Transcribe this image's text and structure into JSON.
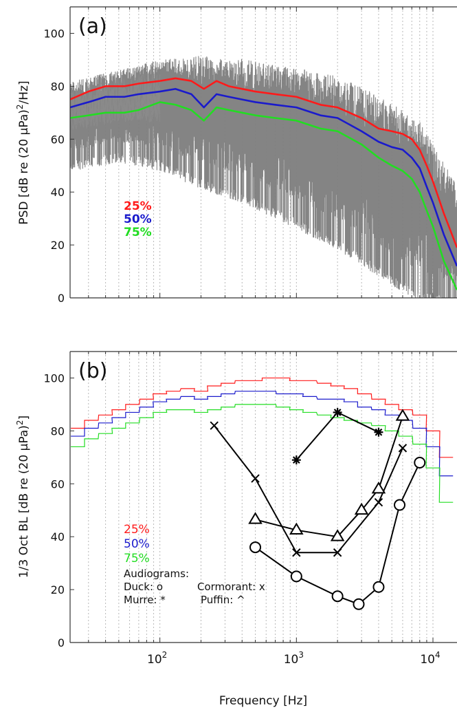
{
  "chart_data": [
    {
      "panel": "(a)",
      "type": "line",
      "title": "",
      "xlabel": "",
      "ylabel": "PSD [dB re (20 µPa)",
      "ylabel_sup": "2",
      "ylabel_tail": "/Hz]",
      "xscale": "log",
      "xlim": [
        22,
        15000
      ],
      "ylim": [
        0,
        110
      ],
      "yticks": [
        0,
        20,
        40,
        60,
        80,
        100
      ],
      "grid": "vertical dotted",
      "legend": [
        "25%",
        "50%",
        "75%"
      ],
      "legend_placement": "center-left",
      "colors": {
        "p25": "#ff1a1a",
        "p50": "#1a1acc",
        "p75": "#22dd22",
        "raw": "#808080"
      },
      "raw_spectra": {
        "name": "",
        "description_ranges": [
          {
            "x": 25,
            "lo": 52,
            "hi": 84
          },
          {
            "x": 50,
            "lo": 55,
            "hi": 88
          },
          {
            "x": 100,
            "lo": 52,
            "hi": 92
          },
          {
            "x": 200,
            "lo": 45,
            "hi": 94
          },
          {
            "x": 400,
            "lo": 40,
            "hi": 93
          },
          {
            "x": 1000,
            "lo": 30,
            "hi": 90
          },
          {
            "x": 2000,
            "lo": 22,
            "hi": 87
          },
          {
            "x": 4000,
            "lo": 12,
            "hi": 80
          },
          {
            "x": 8000,
            "lo": 2,
            "hi": 70
          },
          {
            "x": 15000,
            "lo": 0,
            "hi": 45
          }
        ]
      },
      "series": [
        {
          "name": "25%",
          "x": [
            22,
            30,
            40,
            55,
            70,
            100,
            130,
            170,
            210,
            260,
            320,
            400,
            500,
            700,
            1000,
            1500,
            2000,
            3000,
            4000,
            5000,
            6000,
            7000,
            8000,
            9000,
            10000,
            12000,
            15000
          ],
          "values": [
            75,
            78,
            80,
            80,
            81,
            82,
            83,
            82,
            79,
            82,
            80,
            79,
            78,
            77,
            76,
            73,
            72,
            68,
            64,
            63,
            62,
            60,
            56,
            50,
            44,
            32,
            19
          ]
        },
        {
          "name": "50%",
          "x": [
            22,
            30,
            40,
            55,
            70,
            100,
            130,
            170,
            210,
            260,
            320,
            400,
            500,
            700,
            1000,
            1500,
            2000,
            3000,
            4000,
            5000,
            6000,
            7000,
            8000,
            9000,
            10000,
            12000,
            15000
          ],
          "values": [
            72,
            74,
            76,
            76,
            77,
            78,
            79,
            77,
            72,
            77,
            76,
            75,
            74,
            73,
            72,
            69,
            68,
            63,
            59,
            57,
            56,
            53,
            49,
            42,
            36,
            24,
            12
          ]
        },
        {
          "name": "75%",
          "x": [
            22,
            30,
            40,
            55,
            70,
            100,
            130,
            170,
            210,
            260,
            320,
            400,
            500,
            700,
            1000,
            1500,
            2000,
            3000,
            4000,
            5000,
            6000,
            7000,
            8000,
            9000,
            10000,
            12000,
            15000
          ],
          "values": [
            68,
            69,
            70,
            70,
            71,
            74,
            73,
            71,
            67,
            72,
            71,
            70,
            69,
            68,
            67,
            64,
            63,
            58,
            53,
            50,
            48,
            45,
            40,
            33,
            27,
            14,
            3
          ]
        }
      ]
    },
    {
      "panel": "(b)",
      "type": "line",
      "title": "",
      "xlabel": "Frequency [Hz]",
      "ylabel": "1/3 Oct BL [dB re (20 µPa)",
      "ylabel_sup": "2",
      "ylabel_tail": "]",
      "xscale": "log",
      "xlim": [
        22,
        15000
      ],
      "ylim": [
        0,
        110
      ],
      "yticks": [
        0,
        20,
        40,
        60,
        80,
        100
      ],
      "xticks": [
        {
          "value": 100,
          "base": "10",
          "exp": "2"
        },
        {
          "value": 1000,
          "base": "10",
          "exp": "3"
        },
        {
          "value": 10000,
          "base": "10",
          "exp": "4"
        }
      ],
      "grid": "vertical dotted",
      "legend": [
        "25%",
        "50%",
        "75%"
      ],
      "annotation_lines": [
        "Audiograms:",
        "Duck: o",
        "Cormorant: x",
        "Murre: *",
        "Puffin: ^"
      ],
      "colors": {
        "p25": "#ff1a1a",
        "p50": "#1a1acc",
        "p75": "#22dd22",
        "audiogram": "#000000"
      },
      "third_octave_centers": [
        25,
        31.5,
        40,
        50,
        63,
        80,
        100,
        125,
        160,
        200,
        250,
        315,
        400,
        500,
        630,
        800,
        1000,
        1250,
        1600,
        2000,
        2500,
        3150,
        4000,
        5000,
        6300,
        8000,
        10000,
        12500
      ],
      "series": [
        {
          "name": "25%",
          "values": [
            81,
            84,
            86,
            88,
            90,
            92,
            94,
            95,
            96,
            95,
            97,
            98,
            99,
            99,
            100,
            100,
            99,
            99,
            98,
            97,
            96,
            94,
            92,
            90,
            88,
            86,
            80,
            70
          ]
        },
        {
          "name": "50%",
          "values": [
            78,
            81,
            83,
            85,
            87,
            89,
            91,
            92,
            93,
            92,
            93,
            94,
            95,
            95,
            95,
            94,
            94,
            93,
            92,
            92,
            91,
            89,
            88,
            86,
            84,
            81,
            74,
            63
          ]
        },
        {
          "name": "75%",
          "values": [
            74,
            77,
            79,
            81,
            83,
            85,
            87,
            88,
            88,
            87,
            88,
            89,
            90,
            90,
            90,
            89,
            88,
            87,
            86,
            85,
            84,
            83,
            82,
            80,
            78,
            75,
            66,
            53
          ]
        }
      ],
      "audiograms": [
        {
          "name": "Duck",
          "marker": "o",
          "x": [
            500,
            1000,
            2000,
            2860,
            4000,
            5700,
            8000
          ],
          "values": [
            36,
            25,
            17.5,
            14.5,
            21,
            52,
            68
          ]
        },
        {
          "name": "Cormorant",
          "marker": "x",
          "x": [
            250,
            500,
            1000,
            2000,
            4000,
            6000
          ],
          "values": [
            82,
            62,
            34,
            34,
            53,
            73.5
          ]
        },
        {
          "name": "Murre",
          "marker": "*",
          "x": [
            1000,
            2000,
            4000
          ],
          "values": [
            69,
            87,
            79.5
          ]
        },
        {
          "name": "Puffin",
          "marker": "^",
          "x": [
            500,
            1000,
            2000,
            3000,
            4000,
            6000
          ],
          "values": [
            46.5,
            42.5,
            40,
            50,
            58,
            85.5
          ]
        }
      ]
    }
  ]
}
